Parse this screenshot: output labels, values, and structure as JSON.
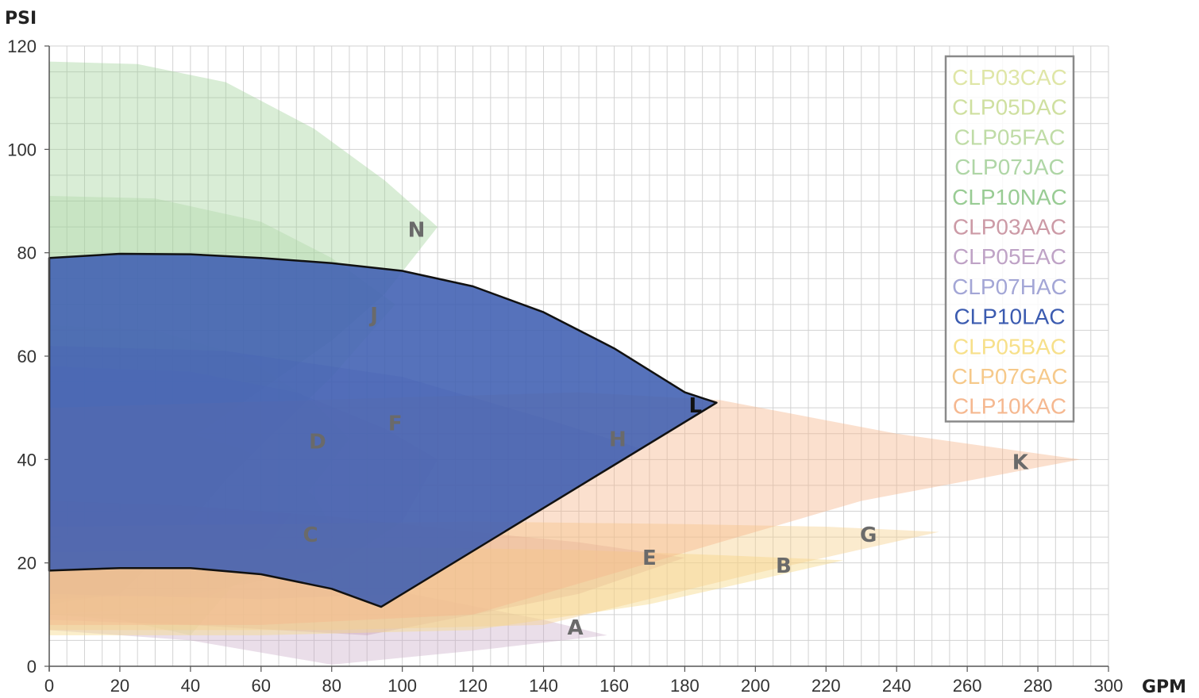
{
  "chart_data": {
    "type": "area",
    "xlabel": "GPM",
    "ylabel": "PSI",
    "xlim": [
      0,
      300
    ],
    "ylim": [
      0,
      120
    ],
    "x_ticks": [
      "0",
      "20",
      "40",
      "60",
      "80",
      "100",
      "120",
      "140",
      "160",
      "180",
      "200",
      "220",
      "240",
      "260",
      "280",
      "300"
    ],
    "y_ticks": [
      "0",
      "20",
      "40",
      "60",
      "80",
      "100",
      "120"
    ],
    "grid": true,
    "legend_position": "top-right",
    "legend": [
      {
        "label": "CLP03CAC",
        "color": "#dfe6a6"
      },
      {
        "label": "CLP05DAC",
        "color": "#cfe0a0"
      },
      {
        "label": "CLP05FAC",
        "color": "#bfdca6"
      },
      {
        "label": "CLP07JAC",
        "color": "#afd6a6"
      },
      {
        "label": "CLP10NAC",
        "color": "#99cc94"
      },
      {
        "label": "CLP03AAC",
        "color": "#cc9aa6"
      },
      {
        "label": "CLP05EAC",
        "color": "#bfa3c6"
      },
      {
        "label": "CLP07HAC",
        "color": "#a3a6d6"
      },
      {
        "label": "CLP10LAC",
        "color": "#3b5bb0"
      },
      {
        "label": "CLP05BAC",
        "color": "#f7e08a"
      },
      {
        "label": "CLP07GAC",
        "color": "#f6c98a"
      },
      {
        "label": "CLP10KAC",
        "color": "#f5b890"
      }
    ],
    "series": [
      {
        "name": "N",
        "color": "#9ccf92",
        "opacity": 0.38,
        "polygon": [
          [
            0,
            117
          ],
          [
            25,
            116.5
          ],
          [
            50,
            113
          ],
          [
            75,
            104
          ],
          [
            95,
            94
          ],
          [
            110,
            85
          ],
          [
            95,
            72
          ],
          [
            80,
            63
          ],
          [
            40,
            44
          ],
          [
            20,
            30
          ],
          [
            0,
            24
          ]
        ],
        "label_at": [
          104,
          84.5
        ]
      },
      {
        "name": "J",
        "color": "#a8d3a0",
        "opacity": 0.35,
        "polygon": [
          [
            0,
            91
          ],
          [
            30,
            90.5
          ],
          [
            60,
            86
          ],
          [
            80,
            79
          ],
          [
            98,
            70
          ],
          [
            80,
            56
          ],
          [
            50,
            36
          ],
          [
            35,
            24
          ],
          [
            20,
            14
          ],
          [
            0,
            12
          ]
        ],
        "label_at": [
          92,
          68
        ]
      },
      {
        "name": "D",
        "color": "#c3dba7",
        "opacity": 0.33,
        "polygon": [
          [
            0,
            66
          ],
          [
            30,
            65
          ],
          [
            55,
            60
          ],
          [
            75,
            51
          ],
          [
            85,
            44
          ],
          [
            60,
            22
          ],
          [
            40,
            6
          ],
          [
            20,
            9
          ],
          [
            0,
            10
          ]
        ],
        "label_at": [
          76,
          43.5
        ]
      },
      {
        "name": "C",
        "color": "#d6e2a4",
        "opacity": 0.33,
        "polygon": [
          [
            0,
            48
          ],
          [
            30,
            47
          ],
          [
            55,
            42
          ],
          [
            75,
            33
          ],
          [
            80,
            27
          ],
          [
            60,
            18
          ],
          [
            40,
            12
          ],
          [
            20,
            11
          ],
          [
            0,
            10
          ]
        ],
        "label_at": [
          74,
          25.5
        ]
      },
      {
        "name": "F",
        "color": "#a9a9d8",
        "opacity": 0.35,
        "polygon": [
          [
            0,
            58
          ],
          [
            40,
            57
          ],
          [
            70,
            53
          ],
          [
            95,
            46
          ],
          [
            110,
            40
          ],
          [
            100,
            28
          ],
          [
            80,
            19
          ],
          [
            40,
            14
          ],
          [
            0,
            13
          ]
        ],
        "label_at": [
          98,
          47
        ]
      },
      {
        "name": "H",
        "color": "#8c86c8",
        "opacity": 0.33,
        "polygon": [
          [
            0,
            62
          ],
          [
            50,
            61
          ],
          [
            100,
            56
          ],
          [
            140,
            48
          ],
          [
            168,
            42
          ],
          [
            130,
            27
          ],
          [
            100,
            14
          ],
          [
            60,
            13
          ],
          [
            0,
            14
          ]
        ],
        "label_at": [
          161,
          44
        ]
      },
      {
        "name": "E",
        "color": "#c58fa3",
        "opacity": 0.38,
        "polygon": [
          [
            0,
            32
          ],
          [
            40,
            31
          ],
          [
            80,
            29
          ],
          [
            120,
            26
          ],
          [
            150,
            24
          ],
          [
            180,
            21
          ],
          [
            150,
            14
          ],
          [
            90,
            6
          ],
          [
            40,
            8
          ],
          [
            0,
            9
          ]
        ],
        "label_at": [
          170,
          21
        ]
      },
      {
        "name": "A",
        "color": "#c9a8c6",
        "opacity": 0.38,
        "polygon": [
          [
            0,
            20
          ],
          [
            40,
            19.5
          ],
          [
            80,
            17
          ],
          [
            110,
            13
          ],
          [
            140,
            9
          ],
          [
            158,
            6
          ],
          [
            120,
            3
          ],
          [
            80,
            0.3
          ],
          [
            40,
            5
          ],
          [
            0,
            7
          ]
        ],
        "label_at": [
          149,
          7.5
        ]
      },
      {
        "name": "B",
        "color": "#f7d98a",
        "opacity": 0.45,
        "polygon": [
          [
            0,
            22
          ],
          [
            50,
            22.5
          ],
          [
            100,
            23
          ],
          [
            150,
            22.5
          ],
          [
            190,
            21.5
          ],
          [
            225,
            20.5
          ],
          [
            170,
            12
          ],
          [
            120,
            7
          ],
          [
            60,
            6
          ],
          [
            0,
            6
          ]
        ],
        "label_at": [
          208,
          19.5
        ]
      },
      {
        "name": "G",
        "color": "#f6cf8a",
        "opacity": 0.42,
        "polygon": [
          [
            0,
            27
          ],
          [
            60,
            27.5
          ],
          [
            120,
            28
          ],
          [
            180,
            27.5
          ],
          [
            220,
            27
          ],
          [
            252,
            26
          ],
          [
            200,
            18
          ],
          [
            140,
            8
          ],
          [
            80,
            7
          ],
          [
            0,
            7
          ]
        ],
        "label_at": [
          232,
          25.5
        ]
      },
      {
        "name": "K",
        "color": "#f5b58a",
        "opacity": 0.42,
        "polygon": [
          [
            0,
            50
          ],
          [
            100,
            52
          ],
          [
            150,
            53
          ],
          [
            190,
            51.5
          ],
          [
            240,
            45
          ],
          [
            292,
            40
          ],
          [
            230,
            32
          ],
          [
            170,
            20
          ],
          [
            120,
            10
          ],
          [
            60,
            8
          ],
          [
            0,
            8
          ]
        ],
        "label_at": [
          275,
          39.5
        ]
      }
    ],
    "highlight": {
      "name": "L",
      "color": "#3f5fb2",
      "top_curve": [
        [
          0,
          79
        ],
        [
          20,
          79.8
        ],
        [
          40,
          79.7
        ],
        [
          60,
          79
        ],
        [
          80,
          78
        ],
        [
          100,
          76.5
        ],
        [
          120,
          73.5
        ],
        [
          140,
          68.5
        ],
        [
          160,
          61.5
        ],
        [
          180,
          53
        ],
        [
          189,
          51
        ]
      ],
      "bottom_curve": [
        [
          94,
          11.5
        ],
        [
          80,
          15
        ],
        [
          60,
          17.8
        ],
        [
          40,
          19
        ],
        [
          20,
          19
        ],
        [
          0,
          18.5
        ]
      ],
      "label_at": [
        183,
        50.5
      ]
    }
  }
}
